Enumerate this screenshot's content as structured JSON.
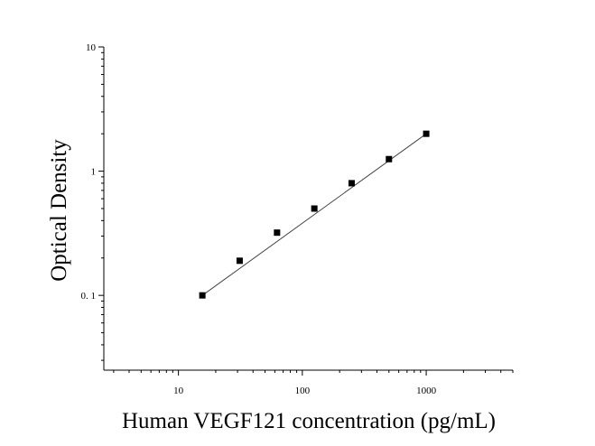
{
  "chart_data": {
    "type": "scatter",
    "xlabel": "Human VEGF121 concentration (pg/mL)",
    "ylabel": "Optical Density",
    "xscale": "log",
    "yscale": "log",
    "xlim": [
      2.5,
      5000
    ],
    "ylim": [
      0.025,
      10
    ],
    "x_ticks": [
      {
        "value": 10,
        "label": "10"
      },
      {
        "value": 100,
        "label": "100"
      },
      {
        "value": 1000,
        "label": "1000"
      }
    ],
    "y_ticks": [
      {
        "value": 0.1,
        "label": "0. 1"
      },
      {
        "value": 1,
        "label": "1"
      },
      {
        "value": 10,
        "label": "10"
      }
    ],
    "grid": false,
    "legend": "none",
    "marker": "square",
    "color": "#000000",
    "series": [
      {
        "x": [
          15.6,
          31.2,
          62.5,
          125,
          250,
          500,
          1000
        ],
        "y": [
          0.1,
          0.19,
          0.32,
          0.5,
          0.8,
          1.25,
          2.0
        ]
      }
    ],
    "fit_curve": {
      "x": [
        15.6,
        1000
      ],
      "y": [
        0.1,
        2.0
      ]
    }
  }
}
